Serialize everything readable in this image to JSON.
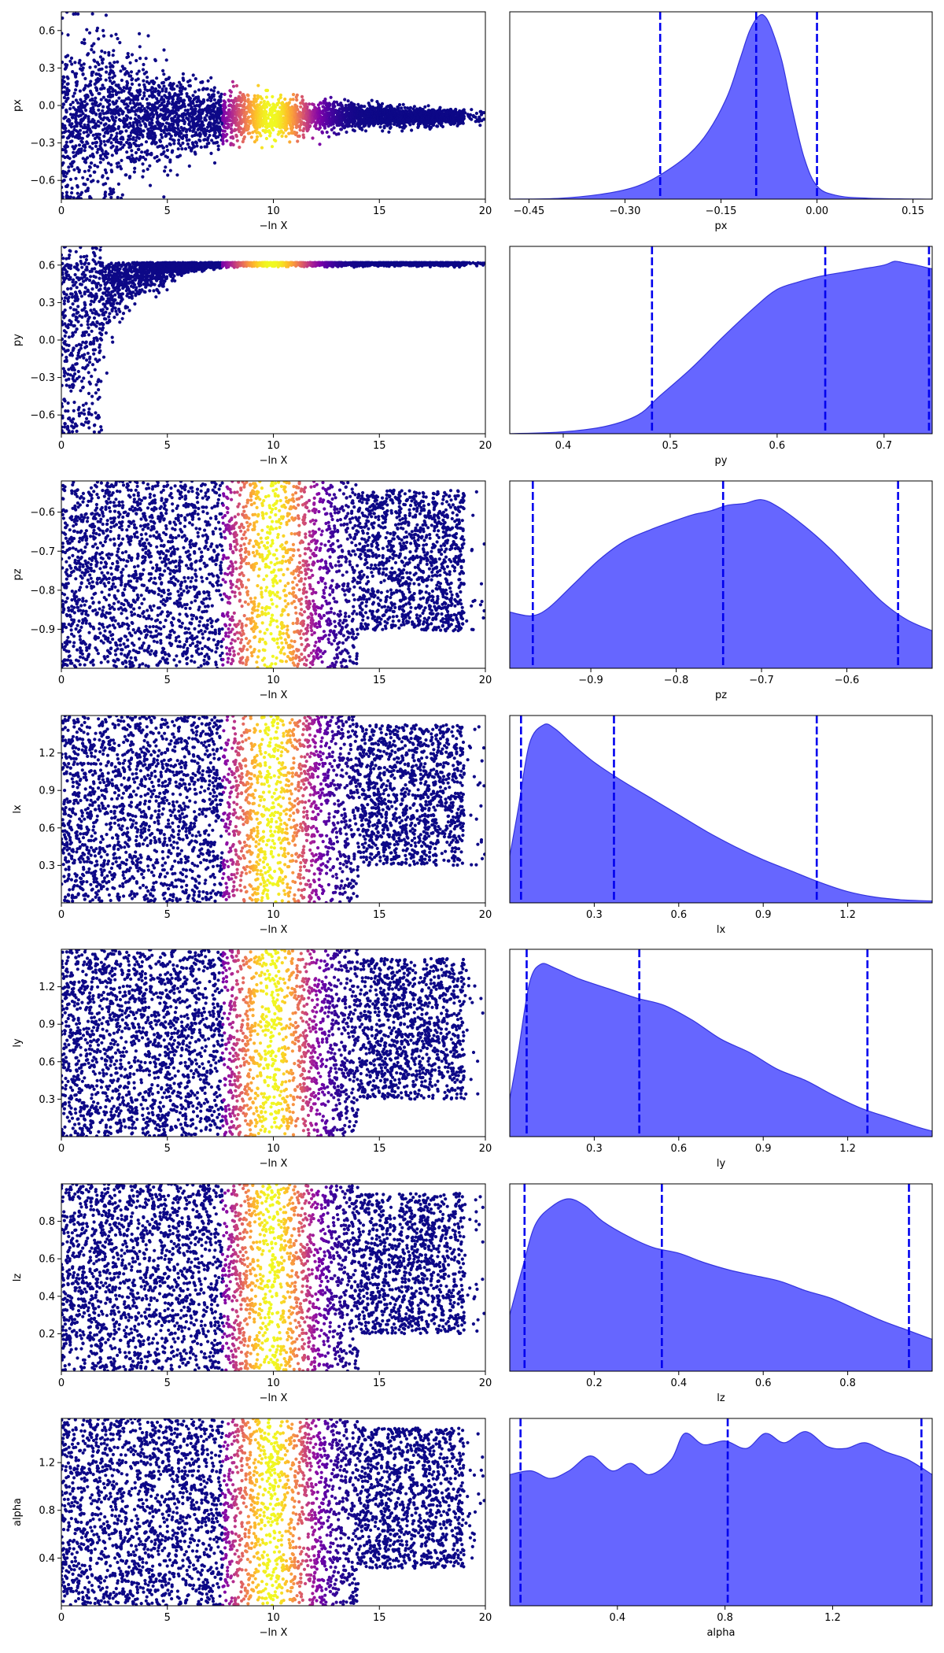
{
  "figure": {
    "type": "dynesty traceplot",
    "colormap": "plasma",
    "kde_fill_color": "#6666ff",
    "kde_edge_color": "#3333dd",
    "quantile_line_color": "#0000ee",
    "scatter_xlabel": "−ln X"
  },
  "chart_data": [
    {
      "param": "px",
      "type": "scatter",
      "xlabel": "−ln X",
      "ylabel": "px",
      "xlim": [
        0,
        20
      ],
      "xticks": [
        0,
        5,
        10,
        15,
        20
      ],
      "ylim": [
        -0.75,
        0.75
      ],
      "yticks": [
        "-0.6",
        "-0.3",
        "0.0",
        "0.3",
        "0.6"
      ],
      "posterior": {
        "type": "area",
        "xlabel": "px",
        "xlim": [
          -0.48,
          0.18
        ],
        "xticks": [
          "-0.45",
          "-0.30",
          "-0.15",
          "0.00",
          "0.15"
        ],
        "quantiles": [
          -0.245,
          -0.095,
          0.0
        ],
        "density_x": [
          -0.48,
          -0.4,
          -0.33,
          -0.28,
          -0.24,
          -0.2,
          -0.17,
          -0.14,
          -0.12,
          -0.105,
          -0.09,
          -0.08,
          -0.07,
          -0.055,
          -0.04,
          -0.02,
          0.0,
          0.03,
          0.08,
          0.18
        ],
        "density_y": [
          0.0,
          0.005,
          0.03,
          0.07,
          0.14,
          0.24,
          0.36,
          0.55,
          0.75,
          0.9,
          0.98,
          0.97,
          0.9,
          0.74,
          0.5,
          0.22,
          0.07,
          0.02,
          0.005,
          0.0
        ]
      }
    },
    {
      "param": "py",
      "type": "scatter",
      "xlabel": "−ln X",
      "ylabel": "py",
      "xlim": [
        0,
        20
      ],
      "xticks": [
        0,
        5,
        10,
        15,
        20
      ],
      "ylim": [
        -0.75,
        0.75
      ],
      "yticks": [
        "-0.6",
        "-0.3",
        "0.0",
        "0.3",
        "0.6"
      ],
      "posterior": {
        "type": "area",
        "xlabel": "py",
        "xlim": [
          0.35,
          0.745
        ],
        "xticks": [
          "0.4",
          "0.5",
          "0.6",
          "0.7"
        ],
        "quantiles": [
          0.483,
          0.645,
          0.742
        ],
        "density_x": [
          0.35,
          0.4,
          0.44,
          0.47,
          0.49,
          0.52,
          0.55,
          0.58,
          0.6,
          0.62,
          0.64,
          0.66,
          0.68,
          0.7,
          0.71,
          0.72,
          0.73,
          0.745
        ],
        "density_y": [
          0.0,
          0.01,
          0.04,
          0.1,
          0.2,
          0.35,
          0.52,
          0.68,
          0.77,
          0.81,
          0.84,
          0.86,
          0.88,
          0.9,
          0.92,
          0.91,
          0.9,
          0.88
        ]
      }
    },
    {
      "param": "pz",
      "type": "scatter",
      "xlabel": "−ln X",
      "ylabel": "pz",
      "xlim": [
        0,
        20
      ],
      "xticks": [
        0,
        5,
        10,
        15,
        20
      ],
      "ylim": [
        -1.0,
        -0.52
      ],
      "yticks": [
        "-0.9",
        "-0.8",
        "-0.7",
        "-0.6"
      ],
      "posterior": {
        "type": "area",
        "xlabel": "pz",
        "xlim": [
          -0.995,
          -0.5
        ],
        "xticks": [
          "-0.9",
          "-0.8",
          "-0.7",
          "-0.6"
        ],
        "quantiles": [
          -0.968,
          -0.745,
          -0.54
        ],
        "density_x": [
          -0.995,
          -0.97,
          -0.95,
          -0.92,
          -0.89,
          -0.86,
          -0.83,
          -0.8,
          -0.78,
          -0.76,
          -0.74,
          -0.72,
          -0.7,
          -0.68,
          -0.65,
          -0.62,
          -0.59,
          -0.56,
          -0.53,
          -0.5
        ],
        "density_y": [
          0.3,
          0.28,
          0.32,
          0.45,
          0.58,
          0.68,
          0.74,
          0.79,
          0.82,
          0.84,
          0.87,
          0.88,
          0.9,
          0.86,
          0.76,
          0.64,
          0.5,
          0.36,
          0.26,
          0.2
        ]
      }
    },
    {
      "param": "lx",
      "type": "scatter",
      "xlabel": "−ln X",
      "ylabel": "lx",
      "xlim": [
        0,
        20
      ],
      "xticks": [
        0,
        5,
        10,
        15,
        20
      ],
      "ylim": [
        0.0,
        1.5
      ],
      "yticks": [
        "0.3",
        "0.6",
        "0.9",
        "1.2"
      ],
      "posterior": {
        "type": "area",
        "xlabel": "lx",
        "xlim": [
          0.0,
          1.5
        ],
        "xticks": [
          "0.3",
          "0.6",
          "0.9",
          "1.2"
        ],
        "quantiles": [
          0.04,
          0.37,
          1.09
        ],
        "density_x": [
          0.0,
          0.03,
          0.07,
          0.12,
          0.16,
          0.22,
          0.3,
          0.4,
          0.5,
          0.6,
          0.7,
          0.8,
          0.9,
          1.0,
          1.1,
          1.2,
          1.3,
          1.4,
          1.5
        ],
        "density_y": [
          0.25,
          0.5,
          0.85,
          0.95,
          0.93,
          0.85,
          0.75,
          0.65,
          0.56,
          0.47,
          0.38,
          0.3,
          0.23,
          0.17,
          0.11,
          0.06,
          0.03,
          0.015,
          0.01
        ]
      }
    },
    {
      "param": "ly",
      "type": "scatter",
      "xlabel": "−ln X",
      "ylabel": "ly",
      "xlim": [
        0,
        20
      ],
      "xticks": [
        0,
        5,
        10,
        15,
        20
      ],
      "ylim": [
        0.0,
        1.5
      ],
      "yticks": [
        "0.3",
        "0.6",
        "0.9",
        "1.2"
      ],
      "posterior": {
        "type": "area",
        "xlabel": "ly",
        "xlim": [
          0.0,
          1.5
        ],
        "xticks": [
          "0.3",
          "0.6",
          "0.9",
          "1.2"
        ],
        "quantiles": [
          0.06,
          0.46,
          1.27
        ],
        "density_x": [
          0.0,
          0.03,
          0.07,
          0.11,
          0.16,
          0.25,
          0.35,
          0.45,
          0.55,
          0.65,
          0.75,
          0.85,
          0.95,
          1.05,
          1.15,
          1.25,
          1.35,
          1.45,
          1.5
        ],
        "density_y": [
          0.2,
          0.45,
          0.82,
          0.92,
          0.9,
          0.84,
          0.79,
          0.74,
          0.7,
          0.62,
          0.52,
          0.45,
          0.36,
          0.3,
          0.22,
          0.15,
          0.1,
          0.05,
          0.03
        ]
      }
    },
    {
      "param": "lz",
      "type": "scatter",
      "xlabel": "−ln X",
      "ylabel": "lz",
      "xlim": [
        0,
        20
      ],
      "xticks": [
        0,
        5,
        10,
        15,
        20
      ],
      "ylim": [
        0.0,
        1.0
      ],
      "yticks": [
        "0.2",
        "0.4",
        "0.6",
        "0.8"
      ],
      "posterior": {
        "type": "area",
        "xlabel": "lz",
        "xlim": [
          0.0,
          1.0
        ],
        "xticks": [
          "0.2",
          "0.4",
          "0.6",
          "0.8"
        ],
        "quantiles": [
          0.035,
          0.36,
          0.945
        ],
        "density_x": [
          0.0,
          0.03,
          0.06,
          0.1,
          0.14,
          0.18,
          0.22,
          0.28,
          0.34,
          0.4,
          0.46,
          0.52,
          0.58,
          0.64,
          0.7,
          0.76,
          0.82,
          0.88,
          0.94,
          1.0
        ],
        "density_y": [
          0.3,
          0.55,
          0.78,
          0.88,
          0.92,
          0.88,
          0.8,
          0.72,
          0.66,
          0.63,
          0.58,
          0.54,
          0.51,
          0.48,
          0.43,
          0.39,
          0.33,
          0.27,
          0.22,
          0.17
        ]
      }
    },
    {
      "param": "alpha",
      "type": "scatter",
      "xlabel": "−ln X",
      "ylabel": "alpha",
      "xlim": [
        0,
        20
      ],
      "xticks": [
        0,
        5,
        10,
        15,
        20
      ],
      "ylim": [
        0.0,
        1.57
      ],
      "yticks": [
        "0.4",
        "0.8",
        "1.2"
      ],
      "posterior": {
        "type": "area",
        "xlabel": "alpha",
        "xlim": [
          0.0,
          1.57
        ],
        "xticks": [
          "0.4",
          "0.8",
          "1.2"
        ],
        "quantiles": [
          0.04,
          0.81,
          1.53
        ],
        "density_x": [
          0.0,
          0.08,
          0.15,
          0.22,
          0.3,
          0.38,
          0.45,
          0.52,
          0.6,
          0.65,
          0.72,
          0.8,
          0.88,
          0.95,
          1.02,
          1.1,
          1.18,
          1.25,
          1.32,
          1.4,
          1.48,
          1.57
        ],
        "density_y": [
          0.7,
          0.72,
          0.68,
          0.72,
          0.8,
          0.72,
          0.76,
          0.7,
          0.78,
          0.92,
          0.86,
          0.88,
          0.84,
          0.92,
          0.87,
          0.93,
          0.85,
          0.84,
          0.87,
          0.82,
          0.78,
          0.7
        ]
      }
    }
  ]
}
